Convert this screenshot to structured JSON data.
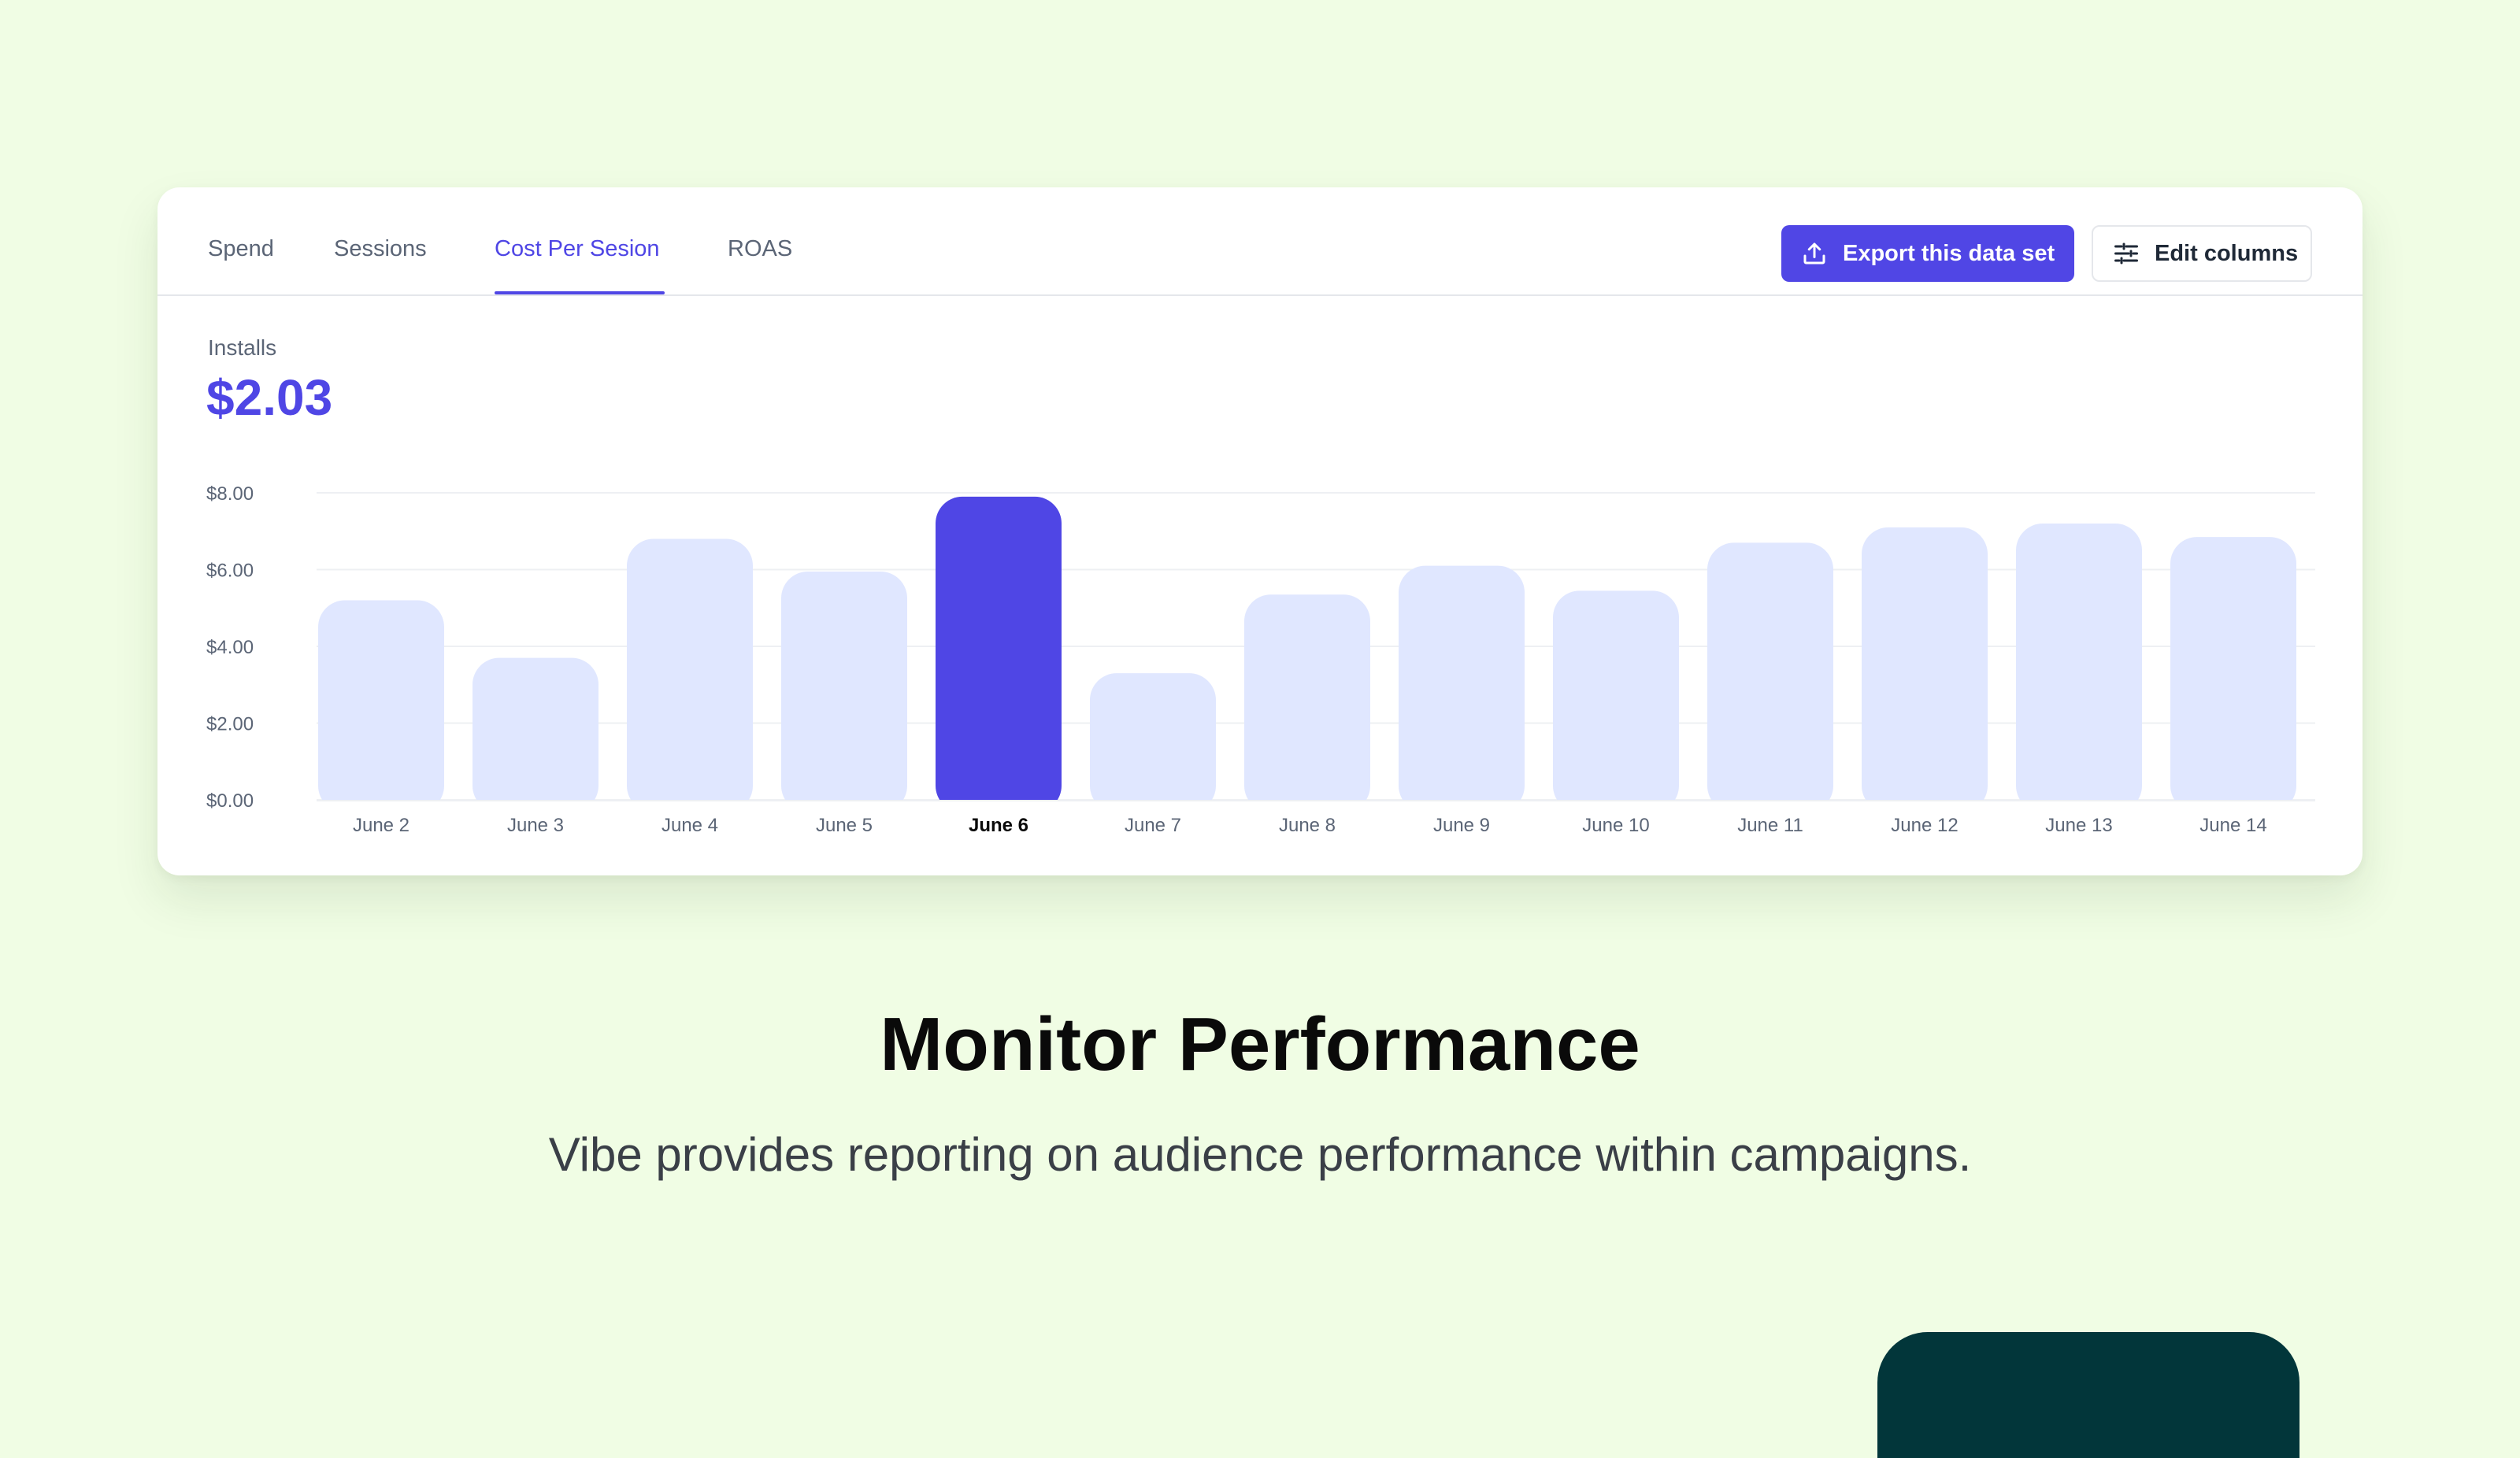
{
  "tabs": [
    {
      "label": "Spend",
      "active": false
    },
    {
      "label": "Sessions",
      "active": false
    },
    {
      "label": "Cost Per Sesion",
      "active": true
    },
    {
      "label": "ROAS",
      "active": false
    }
  ],
  "toolbar": {
    "export_label": "Export this data set",
    "export_icon": "upload-icon",
    "edit_label": "Edit columns",
    "edit_icon": "sliders-icon"
  },
  "metric": {
    "label": "Installs",
    "value": "$2.03"
  },
  "chart_data": {
    "type": "bar",
    "categories": [
      "June 2",
      "June 3",
      "June 4",
      "June 5",
      "June 6",
      "June 7",
      "June 8",
      "June 9",
      "June 10",
      "June 11",
      "June 12",
      "June 13",
      "June 14"
    ],
    "values": [
      5.2,
      3.7,
      6.8,
      5.95,
      7.9,
      3.3,
      5.35,
      6.1,
      5.45,
      6.7,
      7.1,
      7.2,
      6.85
    ],
    "highlight_index": 4,
    "y_ticks": [
      "$0.00",
      "$2.00",
      "$4.00",
      "$6.00",
      "$8.00"
    ],
    "ylim": [
      0,
      8
    ],
    "grid": true,
    "colors": {
      "bar": "#e0e7ff",
      "highlight": "#4f46e5",
      "grid": "#eef0f3",
      "tick": "#5b6576"
    }
  },
  "hero": {
    "title": "Monitor Performance",
    "subtitle": "Vibe provides reporting on audience performance within campaigns."
  },
  "colors": {
    "background": "#f0fde4",
    "accent": "#4f46e5",
    "decor": "#02363a"
  }
}
